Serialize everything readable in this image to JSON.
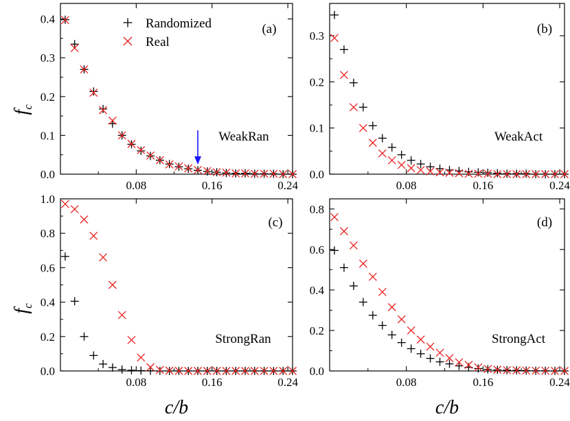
{
  "colors": {
    "randomized": "#000000",
    "real": "#e8201f",
    "arrow": "#1a1aff"
  },
  "legend": {
    "randomized": "Randomized",
    "real": "Real"
  },
  "axis_titles": {
    "y_main": "f",
    "y_sub": "c",
    "x": "c/b"
  },
  "chart_data": [
    {
      "type": "scatter",
      "tag": "(a)",
      "name": "WeakRan",
      "xlim": [
        0,
        0.245
      ],
      "ylim": [
        0,
        0.44
      ],
      "xticks": [
        0.08,
        0.16,
        0.24
      ],
      "xtick_labels": [
        "0.08",
        "0.16",
        "0.24"
      ],
      "yticks": [
        0.0,
        0.1,
        0.2,
        0.3,
        0.4
      ],
      "ytick_labels": [
        "0.0",
        "0.1",
        "0.2",
        "0.3",
        "0.4"
      ],
      "legend_placement": "top-center",
      "arrow_x": 0.145,
      "x": [
        0.005,
        0.015,
        0.025,
        0.035,
        0.045,
        0.055,
        0.065,
        0.075,
        0.085,
        0.095,
        0.105,
        0.115,
        0.125,
        0.135,
        0.145,
        0.155,
        0.165,
        0.175,
        0.185,
        0.195,
        0.205,
        0.215,
        0.225,
        0.235,
        0.245
      ],
      "series": [
        {
          "name": "Randomized",
          "marker": "plus",
          "values": [
            0.398,
            0.335,
            0.27,
            0.213,
            0.168,
            0.13,
            0.1,
            0.077,
            0.06,
            0.047,
            0.036,
            0.026,
            0.019,
            0.014,
            0.01,
            0.007,
            0.005,
            0.003,
            0.002,
            0.002,
            0.001,
            0.001,
            0.001,
            0.0,
            0.0
          ]
        },
        {
          "name": "Real",
          "marker": "cross",
          "values": [
            0.397,
            0.325,
            0.27,
            0.21,
            0.165,
            0.138,
            0.1,
            0.078,
            0.062,
            0.048,
            0.036,
            0.025,
            0.02,
            0.015,
            0.011,
            0.008,
            0.005,
            0.004,
            0.002,
            0.002,
            0.001,
            0.001,
            0.001,
            0.0,
            0.0
          ]
        }
      ]
    },
    {
      "type": "scatter",
      "tag": "(b)",
      "name": "WeakAct",
      "xlim": [
        0,
        0.245
      ],
      "ylim": [
        0,
        0.37
      ],
      "xticks": [
        0.08,
        0.16,
        0.24
      ],
      "xtick_labels": [
        "0.08",
        "0.16",
        "0.24"
      ],
      "yticks": [
        0.0,
        0.1,
        0.2,
        0.3
      ],
      "ytick_labels": [
        "0.0",
        "0.1",
        "0.2",
        "0.3"
      ],
      "x": [
        0.005,
        0.015,
        0.025,
        0.035,
        0.045,
        0.055,
        0.065,
        0.075,
        0.085,
        0.095,
        0.105,
        0.115,
        0.125,
        0.135,
        0.145,
        0.155,
        0.165,
        0.175,
        0.185,
        0.195,
        0.205,
        0.215,
        0.225,
        0.235,
        0.245
      ],
      "series": [
        {
          "name": "Randomized",
          "marker": "plus",
          "values": [
            0.345,
            0.27,
            0.198,
            0.145,
            0.105,
            0.078,
            0.058,
            0.042,
            0.03,
            0.022,
            0.016,
            0.012,
            0.009,
            0.007,
            0.005,
            0.004,
            0.003,
            0.002,
            0.001,
            0.001,
            0.001,
            0.0,
            0.0,
            0.0,
            0.0
          ]
        },
        {
          "name": "Real",
          "marker": "cross",
          "values": [
            0.295,
            0.215,
            0.145,
            0.1,
            0.068,
            0.045,
            0.03,
            0.02,
            0.013,
            0.009,
            0.006,
            0.004,
            0.003,
            0.002,
            0.001,
            0.001,
            0.001,
            0.0,
            0.0,
            0.0,
            0.0,
            0.0,
            0.0,
            0.0,
            0.0
          ]
        }
      ]
    },
    {
      "type": "scatter",
      "tag": "(c)",
      "name": "StrongRan",
      "xlim": [
        0,
        0.245
      ],
      "ylim": [
        0,
        1.0
      ],
      "xticks": [
        0.08,
        0.16,
        0.24
      ],
      "xtick_labels": [
        "0.08",
        "0.16",
        "0.24"
      ],
      "yticks": [
        0.0,
        0.2,
        0.4,
        0.6,
        0.8,
        1.0
      ],
      "ytick_labels": [
        "0.0",
        "0.2",
        "0.4",
        "0.6",
        "0.8",
        "1.0"
      ],
      "x": [
        0.005,
        0.015,
        0.025,
        0.035,
        0.045,
        0.055,
        0.065,
        0.075,
        0.085,
        0.095,
        0.105,
        0.115,
        0.125,
        0.135,
        0.145,
        0.155,
        0.165,
        0.175,
        0.185,
        0.195,
        0.205,
        0.215,
        0.225,
        0.235,
        0.245
      ],
      "series": [
        {
          "name": "Randomized",
          "marker": "plus",
          "values": [
            0.665,
            0.405,
            0.2,
            0.09,
            0.04,
            0.02,
            0.008,
            0.004,
            0.002,
            0.001,
            0.0,
            0.0,
            0.0,
            0.0,
            0.0,
            0.0,
            0.0,
            0.0,
            0.0,
            0.0,
            0.0,
            0.0,
            0.0,
            0.0,
            0.0
          ]
        },
        {
          "name": "Real",
          "marker": "cross",
          "values": [
            0.97,
            0.94,
            0.88,
            0.785,
            0.66,
            0.5,
            0.325,
            0.18,
            0.078,
            0.022,
            0.006,
            0.002,
            0.001,
            0.0,
            0.0,
            0.0,
            0.0,
            0.0,
            0.0,
            0.0,
            0.0,
            0.0,
            0.0,
            0.0,
            0.0
          ]
        }
      ]
    },
    {
      "type": "scatter",
      "tag": "(d)",
      "name": "StrongAct",
      "xlim": [
        0,
        0.245
      ],
      "ylim": [
        0,
        0.85
      ],
      "xticks": [
        0.08,
        0.16,
        0.24
      ],
      "xtick_labels": [
        "0.08",
        "0.16",
        "0.24"
      ],
      "yticks": [
        0.0,
        0.2,
        0.4,
        0.6,
        0.8
      ],
      "ytick_labels": [
        "0.0",
        "0.2",
        "0.4",
        "0.6",
        "0.8"
      ],
      "x": [
        0.005,
        0.015,
        0.025,
        0.035,
        0.045,
        0.055,
        0.065,
        0.075,
        0.085,
        0.095,
        0.105,
        0.115,
        0.125,
        0.135,
        0.145,
        0.155,
        0.165,
        0.175,
        0.185,
        0.195,
        0.205,
        0.215,
        0.225,
        0.235,
        0.245
      ],
      "series": [
        {
          "name": "Randomized",
          "marker": "plus",
          "values": [
            0.595,
            0.51,
            0.42,
            0.34,
            0.275,
            0.225,
            0.178,
            0.14,
            0.11,
            0.085,
            0.062,
            0.045,
            0.035,
            0.025,
            0.018,
            0.012,
            0.008,
            0.005,
            0.004,
            0.003,
            0.002,
            0.001,
            0.001,
            0.0,
            0.0
          ]
        },
        {
          "name": "Real",
          "marker": "cross",
          "values": [
            0.76,
            0.69,
            0.62,
            0.53,
            0.465,
            0.39,
            0.315,
            0.255,
            0.2,
            0.155,
            0.12,
            0.09,
            0.063,
            0.043,
            0.03,
            0.018,
            0.01,
            0.006,
            0.004,
            0.003,
            0.002,
            0.001,
            0.001,
            0.0,
            0.0
          ]
        }
      ]
    }
  ]
}
